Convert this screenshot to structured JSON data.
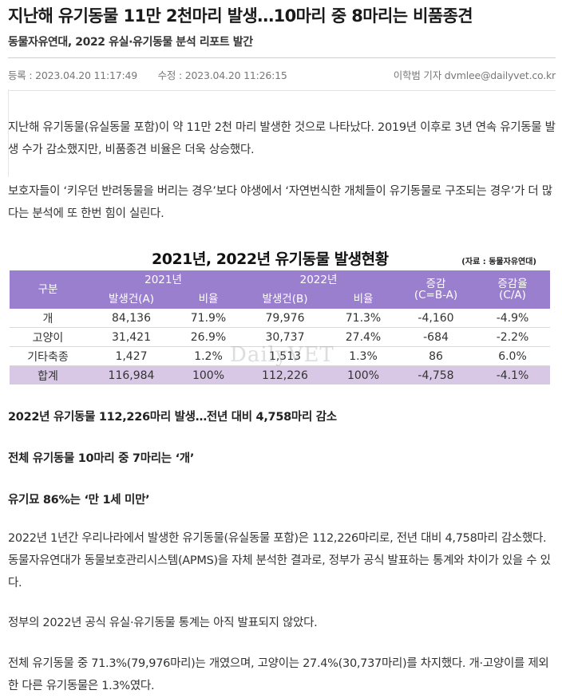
{
  "article": {
    "headline": "지난해 유기동물 11만 2천마리 발생…10마리 중 8마리는 비품종견",
    "subhead": "동물자유연대, 2022 유실·유기동물 분석 리포트 발간",
    "registered_label": "등록 : 2023.04.20 11:17:49",
    "modified_label": "수정 : 2023.04.20 11:26:15",
    "author": "이학범 기자 dvmlee@dailyvet.co.kr",
    "paragraph1": "지난해 유기동물(유실동물 포함)이 약 11만 2천 마리 발생한 것으로 나타났다. 2019년 이후로 3년 연속 유기동물 발생 수가 감소했지만, 비품종견 비율은 더욱 상승했다.",
    "paragraph2": "보호자들이 ‘키우던 반려동물을 버리는 경우’보다 야생에서 ‘자연번식한 개체들이 유기동물로 구조되는 경우’가 더 많다는 분석에 또 한번 힘이 실린다.",
    "highlight1": "2022년 유기동물 112,226마리 발생…전년 대비 4,758마리 감소",
    "highlight2": "전체 유기동물 10마리 중 7마리는 ‘개’",
    "highlight3": "유기묘 86%는 ‘만 1세 미만’",
    "paragraph3": "2022년 1년간 우리나라에서 발생한 유기동물(유실동물 포함)은 112,226마리로, 전년 대비 4,758마리 감소했다. 동물자유연대가 동물보호관리시스템(APMS)을 자체 분석한 결과로, 정부가 공식 발표하는 통계와 차이가 있을 수 있다.",
    "paragraph4": "정부의 2022년 공식 유실·유기동물 통계는 아직 발표되지 않았다.",
    "paragraph5": "전체 유기동물 중 71.3%(79,976마리)는 개였으며, 고양이는 27.4%(30,737마리)를 차지했다. 개·고양이를 제외한 다른 유기동물은 1.3%였다."
  },
  "figure": {
    "title": "2021년, 2022년 유기동물 발생현황",
    "source": "(자료 : 동물자유연대)",
    "watermark": "DailyVET",
    "colors": {
      "header_bg": "#9b7fcf",
      "total_row_bg": "#d8c8e6"
    }
  },
  "chart_data": {
    "type": "table",
    "title": "2021년, 2022년 유기동물 발생현황",
    "header_group": {
      "category": "구분",
      "year2021": "2021년",
      "year2022": "2022년",
      "change": "증감",
      "change_formula": "(C=B-A)",
      "rate": "증감율",
      "rate_formula": "(C/A)"
    },
    "sub_headers": {
      "count2021": "발생건(A)",
      "ratio2021": "비율",
      "count2022": "발생건(B)",
      "ratio2022": "비율"
    },
    "rows": [
      {
        "category": "개",
        "count2021": "84,136",
        "ratio2021": "71.9%",
        "count2022": "79,976",
        "ratio2022": "71.3%",
        "change": "-4,160",
        "rate": "-4.9%"
      },
      {
        "category": "고양이",
        "count2021": "31,421",
        "ratio2021": "26.9%",
        "count2022": "30,737",
        "ratio2022": "27.4%",
        "change": "-684",
        "rate": "-2.2%"
      },
      {
        "category": "기타축종",
        "count2021": "1,427",
        "ratio2021": "1.2%",
        "count2022": "1,513",
        "ratio2022": "1.3%",
        "change": "86",
        "rate": "6.0%"
      },
      {
        "category": "합계",
        "count2021": "116,984",
        "ratio2021": "100%",
        "count2022": "112,226",
        "ratio2022": "100%",
        "change": "-4,758",
        "rate": "-4.1%"
      }
    ]
  }
}
